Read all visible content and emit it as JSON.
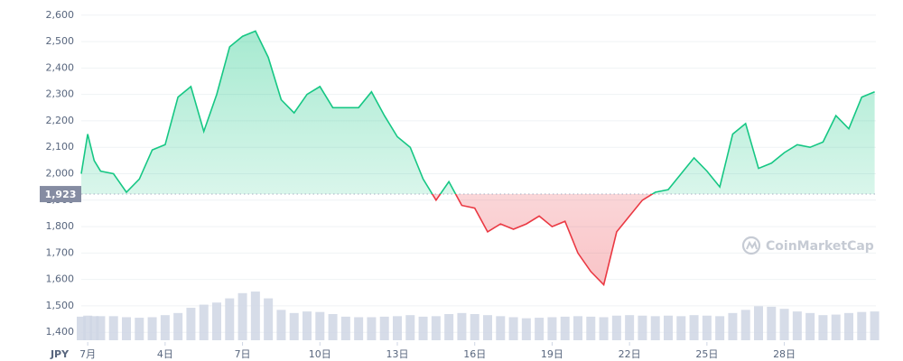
{
  "chart_data": {
    "type": "line",
    "currency": "JPY",
    "watermark": "CoinMarketCap",
    "x": [
      0.75,
      1,
      1.25,
      1.5,
      2,
      2.5,
      3,
      3.5,
      4,
      4.5,
      5,
      5.5,
      6,
      6.5,
      7,
      7.5,
      8,
      8.5,
      9,
      9.5,
      10,
      10.5,
      11,
      11.5,
      12,
      12.5,
      13,
      13.5,
      14,
      14.5,
      15,
      15.5,
      16,
      16.5,
      17,
      17.5,
      18,
      18.5,
      19,
      19.5,
      20,
      20.5,
      21,
      21.5,
      22,
      22.5,
      23,
      23.5,
      24,
      24.5,
      25,
      25.5,
      26,
      26.5,
      27,
      27.5,
      28,
      28.5,
      29,
      29.5,
      30,
      30.5,
      31,
      31.5
    ],
    "series": [
      {
        "name": "Price",
        "color": "#16c784",
        "color_below": "#ea3943",
        "values": [
          2000,
          2150,
          2050,
          2010,
          2000,
          1930,
          1980,
          2090,
          2110,
          2290,
          2330,
          2160,
          2300,
          2480,
          2520,
          2540,
          2440,
          2280,
          2230,
          2300,
          2330,
          2250,
          2250,
          2250,
          2310,
          2220,
          2140,
          2100,
          1980,
          1900,
          1970,
          1880,
          1870,
          1780,
          1810,
          1790,
          1810,
          1840,
          1800,
          1820,
          1700,
          1630,
          1580,
          1780,
          1840,
          1900,
          1930,
          1940,
          2000,
          2060,
          2010,
          1950,
          2150,
          2190,
          2020,
          2040,
          2080,
          2110,
          2100,
          2120,
          2220,
          2170,
          2290,
          2310
        ]
      },
      {
        "name": "Volume",
        "color": "#cfd6e4",
        "vlim": [
          0,
          100
        ],
        "values": [
          45,
          47,
          46,
          46,
          46,
          44,
          43,
          44,
          48,
          52,
          62,
          68,
          72,
          80,
          90,
          93,
          80,
          58,
          52,
          55,
          54,
          50,
          45,
          44,
          44,
          45,
          46,
          48,
          45,
          46,
          50,
          52,
          50,
          48,
          46,
          44,
          42,
          43,
          44,
          45,
          46,
          45,
          44,
          47,
          48,
          47,
          46,
          47,
          46,
          48,
          47,
          46,
          52,
          58,
          65,
          64,
          60,
          55,
          52,
          48,
          49,
          52,
          54,
          55
        ]
      }
    ],
    "baseline": {
      "value": 1923,
      "label": "1,923"
    },
    "xlim": [
      0.75,
      31.55
    ],
    "xticks": [
      {
        "value": 1,
        "label": "7月"
      },
      {
        "value": 4,
        "label": "4日"
      },
      {
        "value": 7,
        "label": "7日"
      },
      {
        "value": 10,
        "label": "10日"
      },
      {
        "value": 13,
        "label": "13日"
      },
      {
        "value": 16,
        "label": "16日"
      },
      {
        "value": 19,
        "label": "19日"
      },
      {
        "value": 22,
        "label": "22日"
      },
      {
        "value": 25,
        "label": "25日"
      },
      {
        "value": 28,
        "label": "28日"
      }
    ],
    "ylim": [
      1370,
      2630
    ],
    "yticks": [
      {
        "value": 1400,
        "label": "1,400"
      },
      {
        "value": 1500,
        "label": "1,500"
      },
      {
        "value": 1600,
        "label": "1,600"
      },
      {
        "value": 1700,
        "label": "1,700"
      },
      {
        "value": 1800,
        "label": "1,800"
      },
      {
        "value": 1900,
        "label": "1,900"
      },
      {
        "value": 2000,
        "label": "2,000"
      },
      {
        "value": 2100,
        "label": "2,100"
      },
      {
        "value": 2200,
        "label": "2,200"
      },
      {
        "value": 2300,
        "label": "2,300"
      },
      {
        "value": 2400,
        "label": "2,400"
      },
      {
        "value": 2500,
        "label": "2,500"
      },
      {
        "value": 2600,
        "label": "2,600"
      }
    ],
    "grid": true
  }
}
